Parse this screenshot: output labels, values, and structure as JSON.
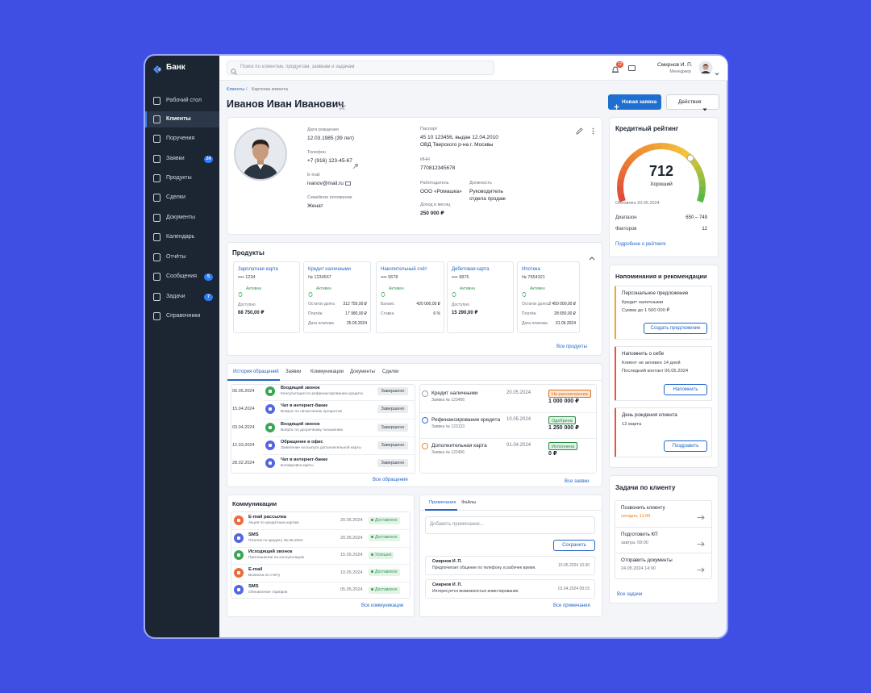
{
  "app": {
    "name": "Банк"
  },
  "search": {
    "placeholder": "Поиск по клиентам, продуктам, заявкам и задачам"
  },
  "user": {
    "notifications": "12",
    "name": "Смирнов И. П.",
    "role": "Менеджер"
  },
  "sidebar": [
    {
      "label": "Рабочий стол"
    },
    {
      "label": "Клиенты",
      "active": true
    },
    {
      "label": "Поручения"
    },
    {
      "label": "Заявки",
      "badge": "24"
    },
    {
      "label": "Продукты"
    },
    {
      "label": "Сделки"
    },
    {
      "label": "Документы"
    },
    {
      "label": "Календарь"
    },
    {
      "label": "Отчёты"
    },
    {
      "label": "Сообщения",
      "badge": "5"
    },
    {
      "label": "Задачи",
      "badge": "7"
    },
    {
      "label": "Справочники"
    }
  ],
  "breadcrumb": {
    "items": [
      "Клиенты",
      "Карточка клиента"
    ],
    "separator": "/"
  },
  "page": {
    "title": "Иванов Иван Иванович",
    "new_request": "Новая заявка",
    "actions": "Действия"
  },
  "profile": {
    "fields": [
      {
        "label": "Дата рождения",
        "value": "12.03.1985 (39 лет)"
      },
      {
        "label": "Телефон",
        "value": "+7 (916) 123-45-67"
      },
      {
        "label": "E-mail",
        "value": "ivanov@mail.ru"
      },
      {
        "label": "Семейное положение",
        "value": "Женат"
      },
      {
        "label": "Паспорт",
        "value": [
          "45 10 123456, выдан 12.04.2010",
          "ОВД Тверского р-на г. Москвы"
        ]
      },
      {
        "label": "ИНН",
        "value": "770812345678"
      },
      {
        "label": "Работодатель",
        "value": "ООО «Ромашка»"
      },
      {
        "label": "Доход в месяц",
        "value": "250 000 ₽"
      },
      {
        "label": "Должность",
        "value": [
          "Руководитель",
          "отдела продаж"
        ]
      }
    ]
  },
  "products": {
    "title": "Продукты",
    "all": "Все продукты",
    "items": [
      {
        "name": "Зарплатная карта",
        "number": "•••• 1234",
        "status": "Активна",
        "rows": [
          [
            "Доступно",
            "68 750,00 ₽"
          ]
        ]
      },
      {
        "name": "Кредит наличными",
        "number": "№ 1234567",
        "status": "Активен",
        "rows": [
          [
            "Остаток долга",
            "312 750,00 ₽"
          ],
          [
            "Платёж",
            "17 980,00 ₽"
          ],
          [
            "Дата платежа",
            "25.05.2024"
          ]
        ]
      },
      {
        "name": "Накопительный счёт",
        "number": "•••• 5678",
        "status": "Активен",
        "rows": [
          [
            "Баланс",
            "420 000,00 ₽"
          ],
          [
            "Ставка",
            "6 %"
          ]
        ]
      },
      {
        "name": "Дебетовая карта",
        "number": "•••• 9876",
        "status": "Активна",
        "rows": [
          [
            "Доступно",
            "15 290,00 ₽"
          ]
        ]
      },
      {
        "name": "Ипотека",
        "number": "№ 7654321",
        "status": "Активен",
        "rows": [
          [
            "Остаток долга",
            "2 450 000,00 ₽"
          ],
          [
            "Платёж",
            "28 650,00 ₽"
          ],
          [
            "Дата платежа",
            "01.06.2024"
          ]
        ]
      }
    ]
  },
  "history": {
    "tabs": [
      "История обращений",
      "Заявки",
      "Коммуникации",
      "Документы",
      "Сделки"
    ],
    "all": "Все обращения",
    "items": [
      {
        "date": "06.05.2024",
        "title": "Входящий звонок",
        "desc": "Консультация по рефинансированию кредита",
        "status": "Завершено",
        "color": "#3aa757"
      },
      {
        "date": "15.04.2024",
        "title": "Чат в интернет-банке",
        "desc": "Вопрос по начислению процентов",
        "status": "Завершено",
        "color": "#5567e0"
      },
      {
        "date": "03.04.2024",
        "title": "Входящий звонок",
        "desc": "Вопрос по досрочному погашению",
        "status": "Завершено",
        "color": "#3aa757"
      },
      {
        "date": "12.03.2024",
        "title": "Обращение в офис",
        "desc": "Заявление на выпуск дополнительной карты",
        "status": "Завершено",
        "color": "#5567e0"
      },
      {
        "date": "28.02.2024",
        "title": "Чат в интернет-банке",
        "desc": "Блокировка карты",
        "status": "Завершено",
        "color": "#5567e0"
      }
    ]
  },
  "requests": {
    "all": "Все заявки",
    "items": [
      {
        "title": "Кредит наличными",
        "number": "Заявка № 123456",
        "date": "20.05.2024",
        "status": "На рассмотрении",
        "status_color": "#d9731e",
        "status_bg": "#fde6d2",
        "amount": "1 000 000 ₽",
        "color": "#9aa3ad"
      },
      {
        "title": "Рефинансирование кредита",
        "number": "Заявка № 123123",
        "date": "10.05.2024",
        "status": "Одобрена",
        "status_color": "#2a8a45",
        "status_bg": "#e1f2e6",
        "amount": "1 250 000 ₽",
        "color": "#2f6fd0"
      },
      {
        "title": "Дополнительная карта",
        "number": "Заявка № 122456",
        "date": "01.04.2024",
        "status": "Исполнена",
        "status_color": "#2a8a45",
        "status_bg": "#e1f2e6",
        "amount": "0 ₽",
        "color": "#e58a2a"
      }
    ]
  },
  "communications": {
    "title": "Коммуникации",
    "all": "Все коммуникации",
    "items": [
      {
        "title": "E-mail рассылка",
        "desc": "Акция по кредитным картам",
        "date": "20.05.2024",
        "status": "Доставлено",
        "color": "#ec6a3c"
      },
      {
        "title": "SMS",
        "desc": "Платёж по кредиту 25.05.2024",
        "date": "20.05.2024",
        "status": "Доставлено",
        "color": "#5567e0"
      },
      {
        "title": "Исходящий звонок",
        "desc": "Приглашение на консультацию",
        "date": "15.05.2024",
        "status": "Успешно",
        "color": "#3aa757"
      },
      {
        "title": "E-mail",
        "desc": "Выписка по счёту",
        "date": "10.05.2024",
        "status": "Доставлено",
        "color": "#ec6a3c"
      },
      {
        "title": "SMS",
        "desc": "Обновление тарифов",
        "date": "05.05.2024",
        "status": "Доставлено",
        "color": "#5567e0"
      }
    ]
  },
  "notes": {
    "tabs": [
      "Примечания",
      "Файлы"
    ],
    "placeholder": "Добавить примечание...",
    "save": "Сохранить",
    "all": "Все примечания",
    "items": [
      {
        "author": "Смирнов И. П.",
        "text": "Предпочитает общение по телефону, в рабочее время.",
        "date": "15.05.2024 10:30"
      },
      {
        "author": "Смирнов И. П.",
        "text": "Интересуется возможностью инвестирования.",
        "date": "01.04.2024 09:15"
      }
    ]
  },
  "credit": {
    "title": "Кредитный рейтинг",
    "score": "712",
    "grade": "Хороший",
    "updated": "Обновлён 20.05.2024",
    "rows": [
      [
        "Диапазон",
        "650 – 749"
      ],
      [
        "Факторов",
        "12"
      ]
    ],
    "link": "Подробнее о рейтинге"
  },
  "reminders": {
    "title": "Напоминания и рекомендации",
    "items": [
      {
        "title": "Персональное предложение",
        "lines": [
          "Кредит наличными",
          "Сумма до 1 500 000 ₽"
        ],
        "button": "Создать предложение",
        "color": "#f0a628"
      },
      {
        "title": "Напомнить о себе",
        "lines": [
          "Клиент не активен 14 дней",
          "Последний контакт 06.05.2024"
        ],
        "button": "Напомнить",
        "color": "#e5573a"
      },
      {
        "title": "День рождения клиента",
        "lines": [
          "12 марта"
        ],
        "button": "Поздравить",
        "color": "#e5573a"
      }
    ]
  },
  "tasks": {
    "title": "Задачи по клиенту",
    "all": "Все задачи",
    "items": [
      {
        "title": "Позвонить клиенту",
        "due": "сегодня, 11:00",
        "color": "#e07a1f"
      },
      {
        "title": "Подготовить КП",
        "due": "завтра, 09:00",
        "color": "#6b7380"
      },
      {
        "title": "Отправить документы",
        "due": "24.05.2024 14:00",
        "color": "#6b7380"
      }
    ]
  }
}
